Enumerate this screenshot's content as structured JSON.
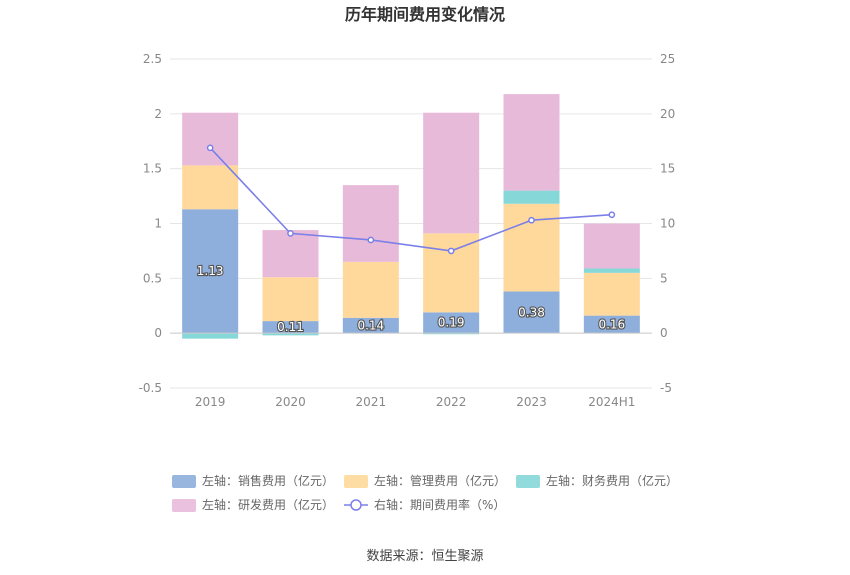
{
  "chart_data": {
    "type": "bar",
    "title": "历年期间费用变化情况",
    "categories": [
      "2019",
      "2020",
      "2021",
      "2022",
      "2023",
      "2024H1"
    ],
    "left_axis": {
      "ylim": [
        -0.5,
        2.5
      ],
      "ticks": [
        "-0.5",
        "0",
        "0.5",
        "1",
        "1.5",
        "2",
        "2.5"
      ],
      "tick_values": [
        -0.5,
        0,
        0.5,
        1,
        1.5,
        2,
        2.5
      ]
    },
    "right_axis": {
      "ylim": [
        -5,
        25
      ],
      "ticks": [
        "-5",
        "0",
        "5",
        "10",
        "15",
        "20",
        "25"
      ],
      "tick_values": [
        -5,
        0,
        5,
        10,
        15,
        20,
        25
      ]
    },
    "series": [
      {
        "name": "左轴：销售费用（亿元）",
        "axis": "left",
        "kind": "bar",
        "color": "#8eaedb",
        "values": [
          1.13,
          0.11,
          0.14,
          0.19,
          0.38,
          0.16
        ],
        "labels": [
          "1.13",
          "0.11",
          "0.14",
          "0.19",
          "0.38",
          "0.16"
        ]
      },
      {
        "name": "左轴：管理费用（亿元）",
        "axis": "left",
        "kind": "bar",
        "color": "#fed99b",
        "values": [
          0.4,
          0.4,
          0.51,
          0.72,
          0.8,
          0.39
        ]
      },
      {
        "name": "左轴：财务费用（亿元）",
        "axis": "left",
        "kind": "bar",
        "color": "#86d7d8",
        "values": [
          -0.05,
          -0.02,
          0.0,
          -0.01,
          0.12,
          0.04
        ]
      },
      {
        "name": "左轴：研发费用（亿元）",
        "axis": "left",
        "kind": "bar",
        "color": "#e8bada",
        "values": [
          0.48,
          0.43,
          0.7,
          1.1,
          0.88,
          0.41
        ]
      },
      {
        "name": "右轴：期间费用率（%）",
        "axis": "right",
        "kind": "line",
        "color": "#7b7fe8",
        "values": [
          16.9,
          9.1,
          8.5,
          7.5,
          10.3,
          10.8
        ]
      }
    ],
    "grid": true,
    "legend_position": "bottom",
    "source": "数据来源：恒生聚源"
  }
}
